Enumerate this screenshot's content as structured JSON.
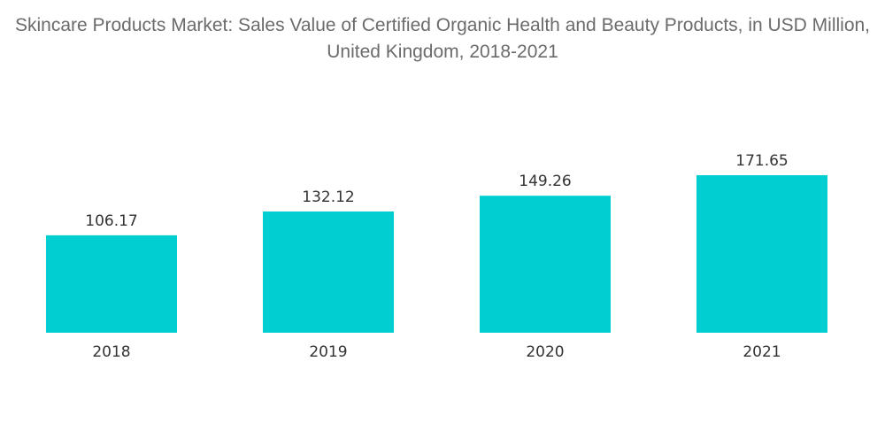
{
  "chart_data": {
    "type": "bar",
    "title": "Skincare Products Market: Sales Value of Certified Organic Health and Beauty Products, in USD Million, United Kingdom, 2018-2021",
    "categories": [
      "2018",
      "2019",
      "2020",
      "2021"
    ],
    "values": [
      106.17,
      132.12,
      149.26,
      171.65
    ],
    "value_labels": [
      "106.17",
      "132.12",
      "149.26",
      "171.65"
    ],
    "xlabel": "",
    "ylabel": "",
    "ylim": [
      0,
      171.65
    ],
    "grid": false,
    "bar_color": "#00CED1"
  }
}
